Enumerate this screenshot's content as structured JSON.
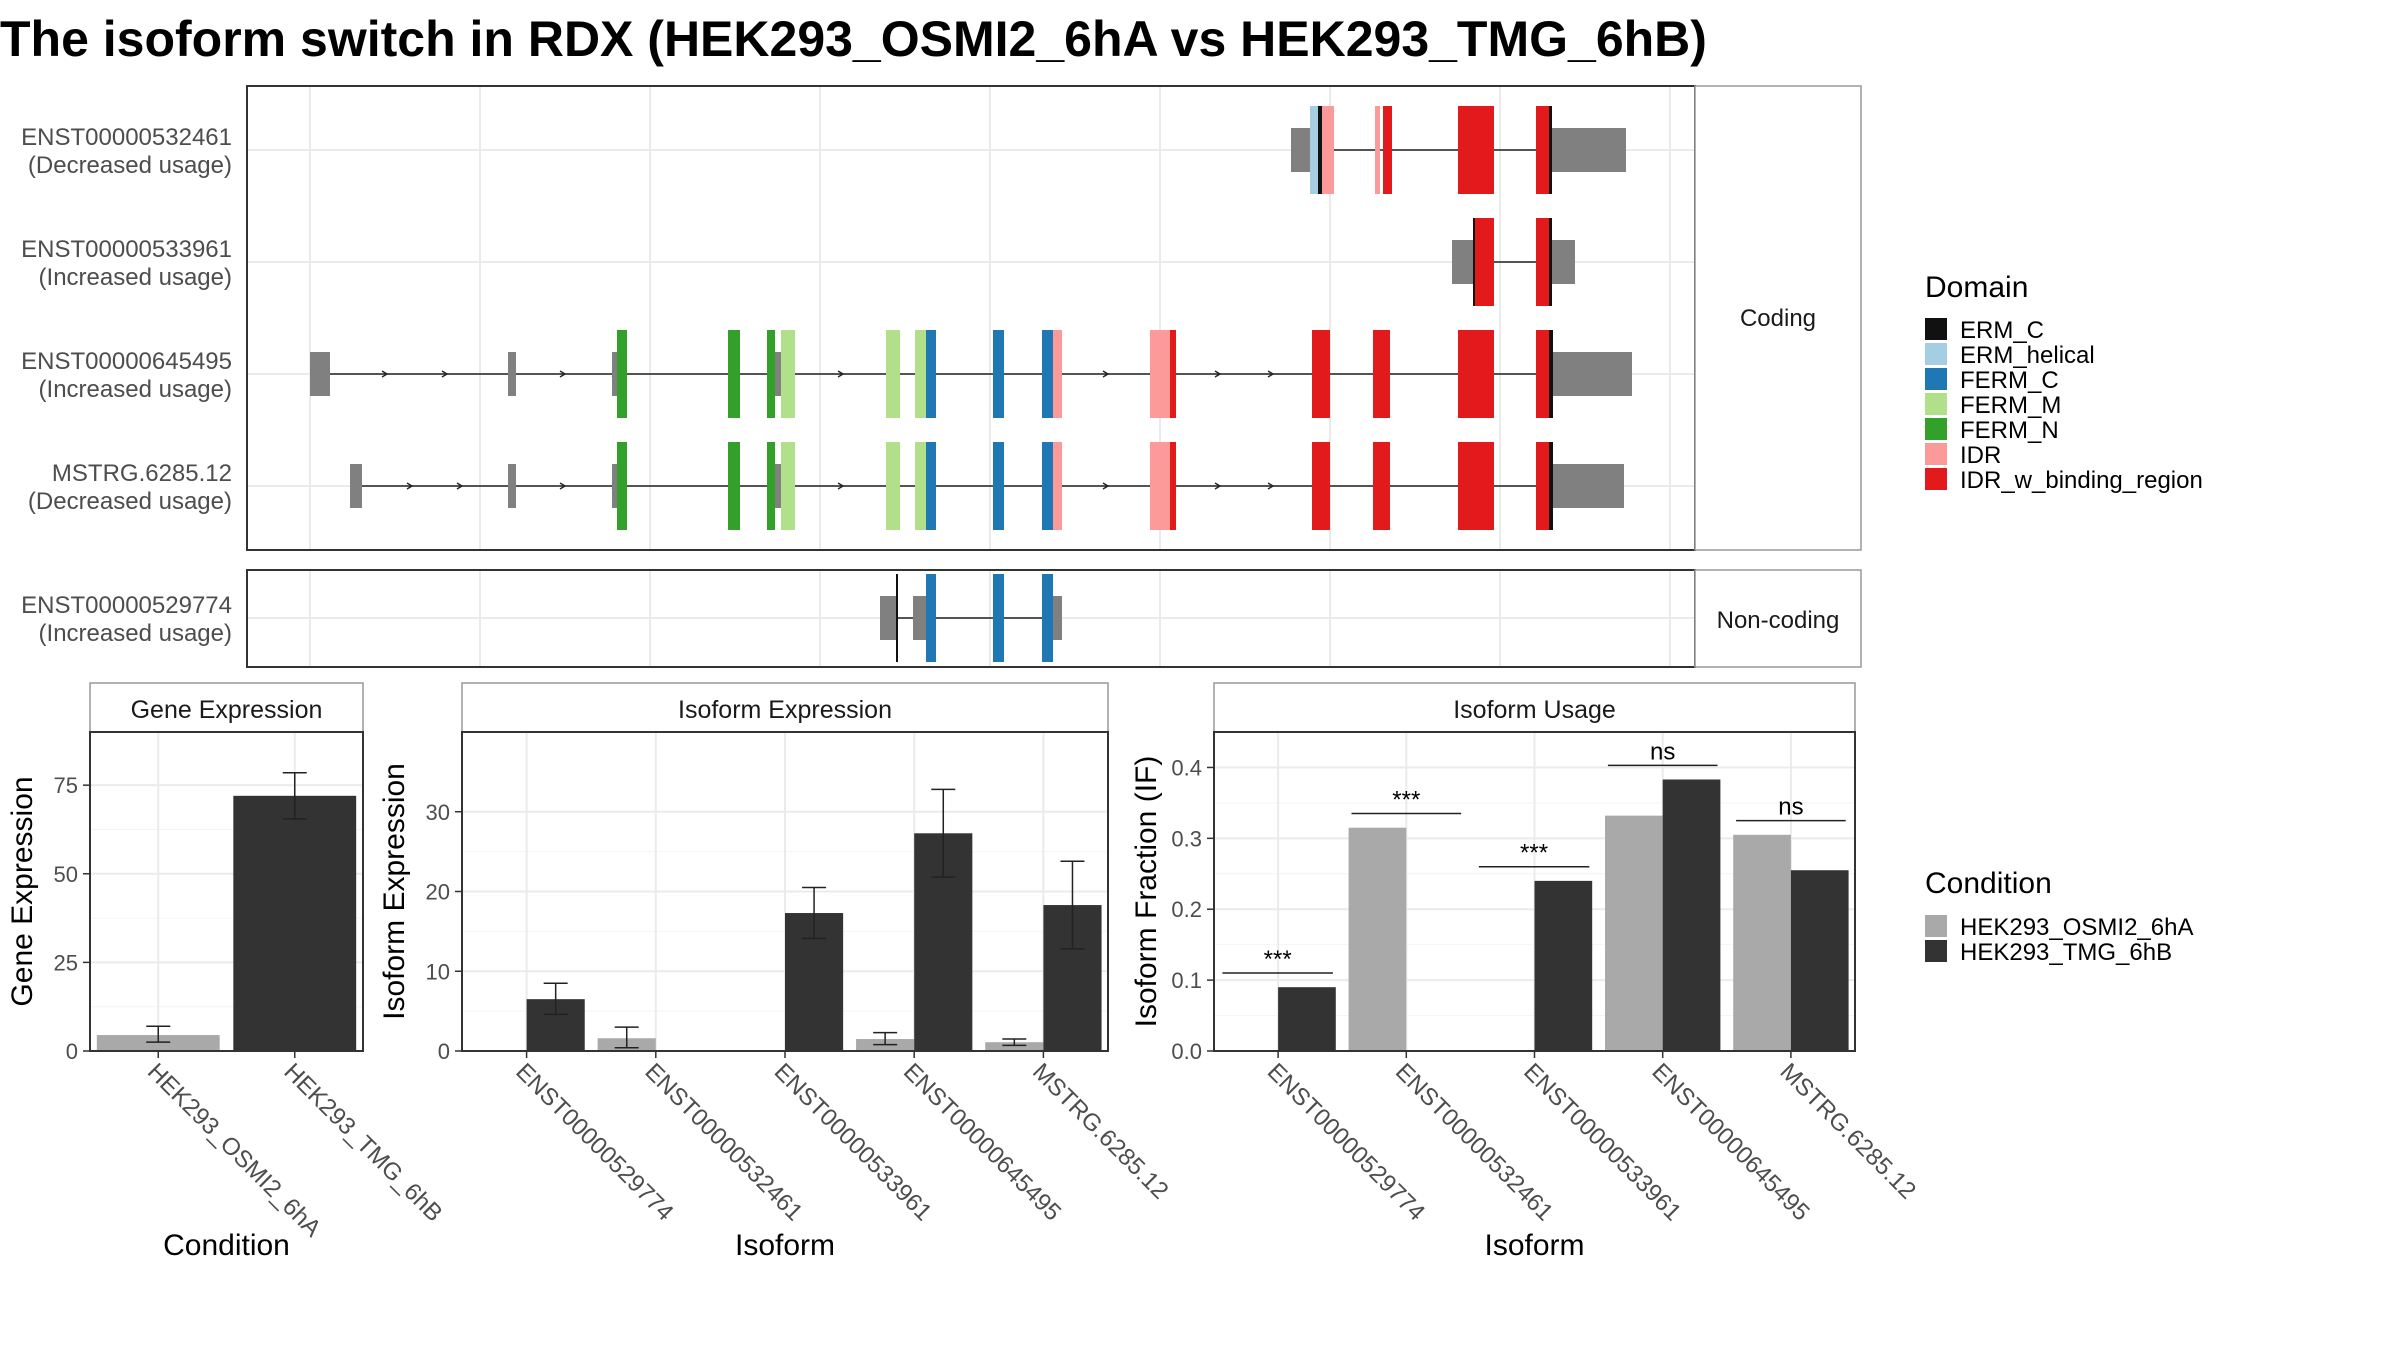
{
  "figure": {
    "title": "The isoform switch in RDX (HEK293_OSMI2_6hA vs HEK293_TMG_6hB)"
  },
  "structure": {
    "facet_labels": [
      "Coding",
      "Non-coding"
    ],
    "isoforms": [
      {
        "label_id": "ENST00000532461",
        "label_usage": "(Decreased usage)",
        "facet": "Coding"
      },
      {
        "label_id": "ENST00000533961",
        "label_usage": "(Increased usage)",
        "facet": "Coding"
      },
      {
        "label_id": "ENST00000645495",
        "label_usage": "(Increased usage)",
        "facet": "Coding"
      },
      {
        "label_id": "MSTRG.6285.12",
        "label_usage": "(Decreased usage)",
        "facet": "Coding"
      },
      {
        "label_id": "ENST00000529774",
        "label_usage": "(Increased usage)",
        "facet": "Non-coding"
      }
    ]
  },
  "legends": {
    "domain": {
      "title": "Domain",
      "items": [
        {
          "label": "ERM_C",
          "color": "#111111"
        },
        {
          "label": "ERM_helical",
          "color": "#a6cee3"
        },
        {
          "label": "FERM_C",
          "color": "#1f78b4"
        },
        {
          "label": "FERM_M",
          "color": "#b2df8a"
        },
        {
          "label": "FERM_N",
          "color": "#33a02c"
        },
        {
          "label": "IDR",
          "color": "#fb9a99"
        },
        {
          "label": "IDR_w_binding_region",
          "color": "#e31a1c"
        }
      ]
    },
    "condition": {
      "title": "Condition",
      "items": [
        {
          "label": "HEK293_OSMI2_6hA",
          "color": "#a9a9a9"
        },
        {
          "label": "HEK293_TMG_6hB",
          "color": "#333333"
        }
      ]
    }
  },
  "colors": {
    "utr": "#808080",
    "osmi": "#a9a9a9",
    "tmg": "#333333"
  },
  "chart_data": [
    {
      "type": "bar",
      "title": "Gene Expression",
      "xlabel": "Condition",
      "ylabel": "Gene Expression",
      "ylim": [
        0,
        90
      ],
      "yticks": [
        0,
        25,
        50,
        75
      ],
      "categories": [
        "HEK293_OSMI2_6hA",
        "HEK293_TMG_6hB"
      ],
      "series": [
        {
          "values": [
            4.5,
            72.0
          ],
          "err_low": [
            2.5,
            65.5
          ],
          "err_high": [
            7.0,
            78.5
          ]
        }
      ]
    },
    {
      "type": "bar",
      "title": "Isoform Expression",
      "xlabel": "Isoform",
      "ylabel": "Isoform Expression",
      "ylim": [
        0,
        40
      ],
      "yticks": [
        0,
        10,
        20,
        30
      ],
      "categories": [
        "ENST00000529774",
        "ENST00000532461",
        "ENST00000533961",
        "ENST00000645495",
        "MSTRG.6285.12"
      ],
      "series": [
        {
          "name": "HEK293_OSMI2_6hA",
          "values": [
            0.0,
            1.6,
            0.0,
            1.5,
            1.1
          ],
          "err_low": [
            0.0,
            0.4,
            0.0,
            0.8,
            0.7
          ],
          "err_high": [
            0.0,
            3.0,
            0.0,
            2.3,
            1.5
          ]
        },
        {
          "name": "HEK293_TMG_6hB",
          "values": [
            6.5,
            0.0,
            17.3,
            27.3,
            18.3
          ],
          "err_low": [
            4.6,
            0.0,
            14.1,
            21.8,
            12.8
          ],
          "err_high": [
            8.5,
            0.0,
            20.5,
            32.8,
            23.8
          ]
        }
      ]
    },
    {
      "type": "bar",
      "title": "Isoform Usage",
      "xlabel": "Isoform",
      "ylabel": "Isoform Fraction (IF)",
      "ylim": [
        0,
        0.45
      ],
      "yticks": [
        0.0,
        0.1,
        0.2,
        0.3,
        0.4
      ],
      "categories": [
        "ENST00000529774",
        "ENST00000532461",
        "ENST00000533961",
        "ENST00000645495",
        "MSTRG.6285.12"
      ],
      "series": [
        {
          "name": "HEK293_OSMI2_6hA",
          "values": [
            0.0,
            0.315,
            0.0,
            0.332,
            0.305
          ]
        },
        {
          "name": "HEK293_TMG_6hB",
          "values": [
            0.09,
            0.0,
            0.24,
            0.383,
            0.255
          ]
        }
      ],
      "significance": [
        "***",
        "***",
        "***",
        "ns",
        "ns"
      ]
    }
  ]
}
